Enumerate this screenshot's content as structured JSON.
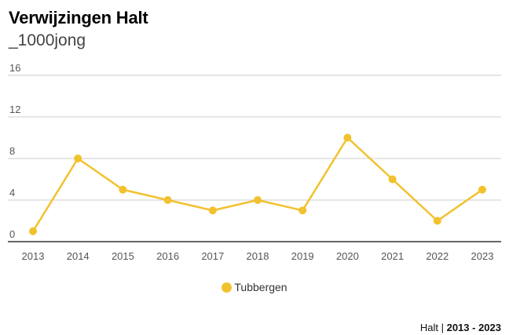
{
  "header": {
    "title": "Verwijzingen Halt",
    "subtitle": "_1000jong"
  },
  "legend": {
    "label": "Tubbergen"
  },
  "footer": {
    "source": "Halt",
    "separator": " | ",
    "range": "2013 - 2023"
  },
  "colors": {
    "series": "#f2c12e",
    "grid": "#cccccc",
    "axis": "#333333",
    "tick": "#555555"
  },
  "chart_data": {
    "type": "line",
    "title": "Verwijzingen Halt",
    "subtitle": "_1000jong",
    "x": [
      "2013",
      "2014",
      "2015",
      "2016",
      "2017",
      "2018",
      "2019",
      "2020",
      "2021",
      "2022",
      "2023"
    ],
    "series": [
      {
        "name": "Tubbergen",
        "values": [
          1,
          8,
          5,
          4,
          3,
          4,
          3,
          10,
          6,
          2,
          5
        ]
      }
    ],
    "yticks": [
      0,
      4,
      8,
      12,
      16
    ],
    "ylim": [
      0,
      16
    ],
    "grid": true,
    "legend": "bottom"
  }
}
